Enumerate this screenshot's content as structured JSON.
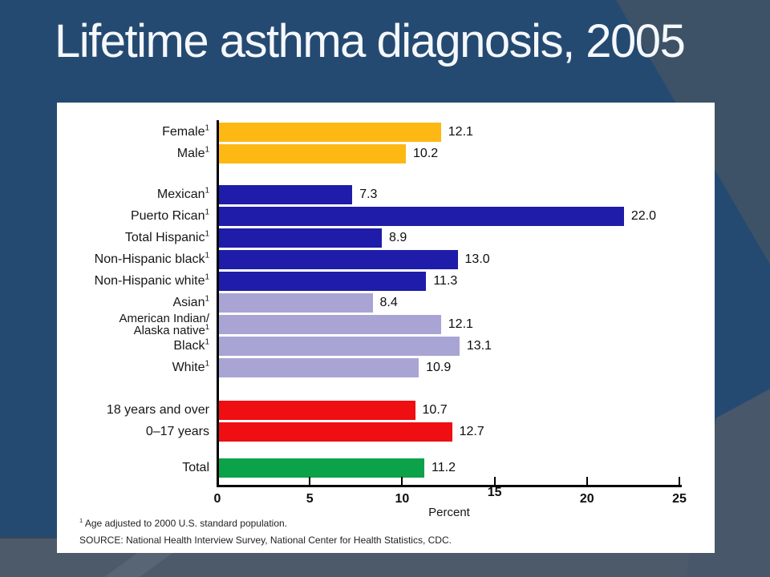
{
  "slide": {
    "title": "Lifetime asthma diagnosis, 2005",
    "background_color": "#254a72",
    "accent_shape_color": "#3d5266"
  },
  "chart_data": {
    "type": "bar",
    "orientation": "horizontal",
    "xlabel": "Percent",
    "xlim": [
      0,
      25
    ],
    "x_ticks": [
      0,
      5,
      10,
      15,
      20,
      25
    ],
    "grid": false,
    "footnote_marker": "1",
    "colors": {
      "gold": "#fdb813",
      "navy": "#1e1ca8",
      "lavender": "#a8a5d5",
      "red": "#ef0e11",
      "green": "#0ba24a"
    },
    "bars": [
      {
        "label": "Female",
        "footnote": true,
        "value": 12.1,
        "value_label": "12.1",
        "color": "gold"
      },
      {
        "label": "Male",
        "footnote": true,
        "value": 10.2,
        "value_label": "10.2",
        "color": "gold",
        "spacer_after": 24
      },
      {
        "label": "Mexican",
        "footnote": true,
        "value": 7.3,
        "value_label": "7.3",
        "color": "navy"
      },
      {
        "label": "Puerto Rican",
        "footnote": true,
        "value": 22.0,
        "value_label": "22.0",
        "color": "navy"
      },
      {
        "label": "Total Hispanic",
        "footnote": true,
        "value": 8.9,
        "value_label": "8.9",
        "color": "navy"
      },
      {
        "label": "Non-Hispanic black",
        "footnote": true,
        "value": 13.0,
        "value_label": "13.0",
        "color": "navy"
      },
      {
        "label": "Non-Hispanic white",
        "footnote": true,
        "value": 11.3,
        "value_label": "11.3",
        "color": "navy"
      },
      {
        "label": "Asian",
        "footnote": true,
        "value": 8.4,
        "value_label": "8.4",
        "color": "lavender"
      },
      {
        "label": "American Indian/\nAlaska native",
        "footnote": true,
        "value": 12.1,
        "value_label": "12.1",
        "color": "lavender"
      },
      {
        "label": "Black",
        "footnote": true,
        "value": 13.1,
        "value_label": "13.1",
        "color": "lavender"
      },
      {
        "label": "White",
        "footnote": true,
        "value": 10.9,
        "value_label": "10.9",
        "color": "lavender",
        "spacer_after": 26
      },
      {
        "label": "18 years and over",
        "footnote": false,
        "value": 10.7,
        "value_label": "10.7",
        "color": "red"
      },
      {
        "label": "0–17 years",
        "footnote": false,
        "value": 12.7,
        "value_label": "12.7",
        "color": "red",
        "spacer_after": 18
      },
      {
        "label": "Total",
        "footnote": false,
        "value": 11.2,
        "value_label": "11.2",
        "color": "green"
      }
    ],
    "footnotes": {
      "age_adjusted": "Age adjusted to 2000 U.S. standard population.",
      "source": "SOURCE: National Health Interview Survey, National Center for Health Statistics, CDC."
    }
  }
}
